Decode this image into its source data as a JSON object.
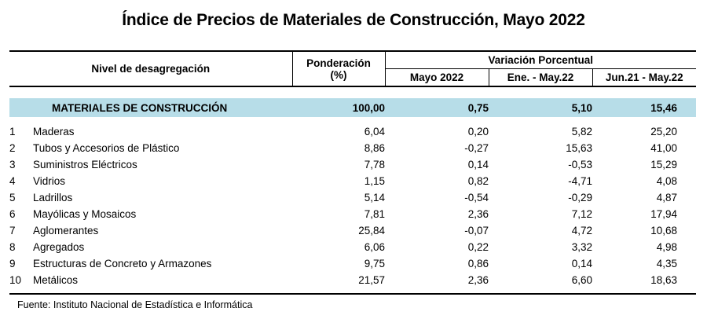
{
  "title": "Índice de Precios de Materiales de Construcción, Mayo 2022",
  "headers": {
    "level": "Nivel de desagregación",
    "weight_line1": "Ponderación",
    "weight_line2": "(%)",
    "variation": "Variación Porcentual",
    "col_may": "Mayo 2022",
    "col_ene": "Ene. - May.22",
    "col_jun": "Jun.21 - May.22"
  },
  "total": {
    "name": "MATERIALES DE CONSTRUCCIÓN",
    "weight": "100,00",
    "may": "0,75",
    "ene": "5,10",
    "jun": "15,46"
  },
  "rows": [
    {
      "num": "1",
      "name": "Maderas",
      "weight": "6,04",
      "may": "0,20",
      "ene": "5,82",
      "jun": "25,20"
    },
    {
      "num": "2",
      "name": "Tubos y Accesorios de Plástico",
      "weight": "8,86",
      "may": "-0,27",
      "ene": "15,63",
      "jun": "41,00"
    },
    {
      "num": "3",
      "name": "Suministros Eléctricos",
      "weight": "7,78",
      "may": "0,14",
      "ene": "-0,53",
      "jun": "15,29"
    },
    {
      "num": "4",
      "name": "Vidrios",
      "weight": "1,15",
      "may": "0,82",
      "ene": "-4,71",
      "jun": "4,08"
    },
    {
      "num": "5",
      "name": "Ladrillos",
      "weight": "5,14",
      "may": "-0,54",
      "ene": "-0,29",
      "jun": "4,87"
    },
    {
      "num": "6",
      "name": "Mayólicas y Mosaicos",
      "weight": "7,81",
      "may": "2,36",
      "ene": "7,12",
      "jun": "17,94"
    },
    {
      "num": "7",
      "name": "Aglomerantes",
      "weight": "25,84",
      "may": "-0,07",
      "ene": "4,72",
      "jun": "10,68"
    },
    {
      "num": "8",
      "name": "Agregados",
      "weight": "6,06",
      "may": "0,22",
      "ene": "3,32",
      "jun": "4,98"
    },
    {
      "num": "9",
      "name": "Estructuras de Concreto y Armazones",
      "weight": "9,75",
      "may": "0,86",
      "ene": "0,14",
      "jun": "4,35"
    },
    {
      "num": "10",
      "name": "Metálicos",
      "weight": "21,57",
      "may": "2,36",
      "ene": "6,60",
      "jun": "18,63"
    }
  ],
  "source": "Fuente: Instituto Nacional de Estadística e Informática"
}
